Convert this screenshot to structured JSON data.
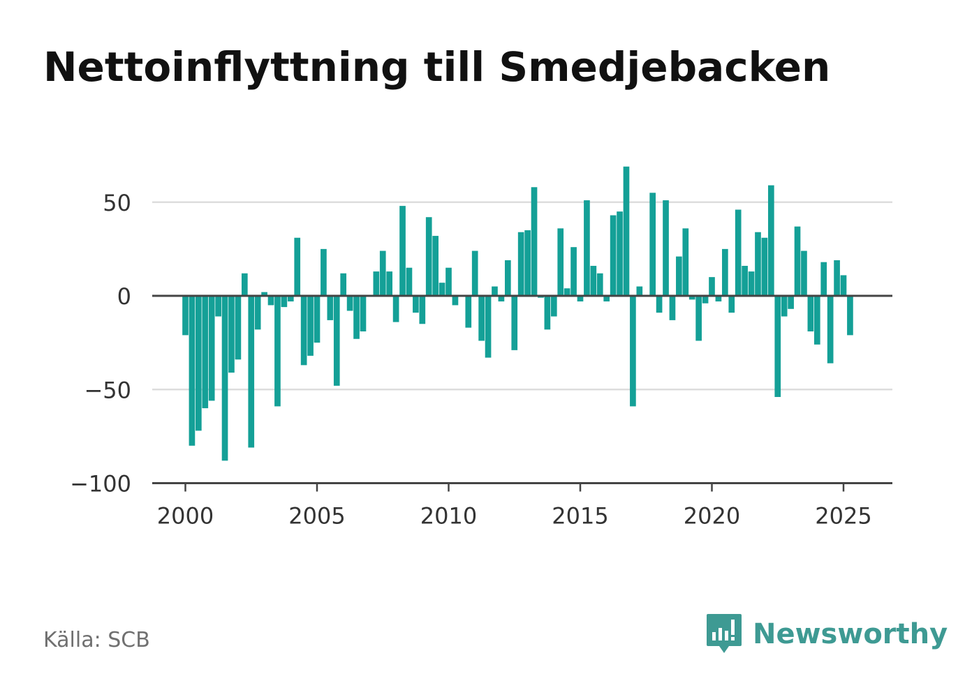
{
  "header": {
    "title": "Nettoinflyttning till Smedjebacken"
  },
  "footer": {
    "source": "Källa: SCB",
    "brand": "Newsworthy"
  },
  "colors": {
    "bar": "#14a097",
    "brand": "#3e9a93",
    "grid": "#dddddd",
    "axis": "#444444"
  },
  "chart_data": {
    "type": "bar",
    "title": "Nettoinflyttning till Smedjebacken",
    "xlabel": "",
    "ylabel": "",
    "xlim": [
      1997.5,
      2026.75
    ],
    "ylim": [
      -100,
      70
    ],
    "y_ticks": [
      50,
      0,
      -50,
      -100
    ],
    "y_tick_labels": [
      "50",
      "0",
      "−50",
      "−100"
    ],
    "x_ticks": [
      2000,
      2005,
      2010,
      2015,
      2020,
      2025
    ],
    "x_tick_labels": [
      "2000",
      "2005",
      "2010",
      "2015",
      "2020",
      "2025"
    ],
    "grid": true,
    "bar_interval": "quarter",
    "x": [
      2000.0,
      2000.25,
      2000.5,
      2000.75,
      2001.0,
      2001.25,
      2001.5,
      2001.75,
      2002.0,
      2002.25,
      2002.5,
      2002.75,
      2003.0,
      2003.25,
      2003.5,
      2003.75,
      2004.0,
      2004.25,
      2004.5,
      2004.75,
      2005.0,
      2005.25,
      2005.5,
      2005.75,
      2006.0,
      2006.25,
      2006.5,
      2006.75,
      2007.0,
      2007.25,
      2007.5,
      2007.75,
      2008.0,
      2008.25,
      2008.5,
      2008.75,
      2009.0,
      2009.25,
      2009.5,
      2009.75,
      2010.0,
      2010.25,
      2010.5,
      2010.75,
      2011.0,
      2011.25,
      2011.5,
      2011.75,
      2012.0,
      2012.25,
      2012.5,
      2012.75,
      2013.0,
      2013.25,
      2013.5,
      2013.75,
      2014.0,
      2014.25,
      2014.5,
      2014.75,
      2015.0,
      2015.25,
      2015.5,
      2015.75,
      2016.0,
      2016.25,
      2016.5,
      2016.75,
      2017.0,
      2017.25,
      2017.5,
      2017.75,
      2018.0,
      2018.25,
      2018.5,
      2018.75,
      2019.0,
      2019.25,
      2019.5,
      2019.75,
      2020.0,
      2020.25,
      2020.5,
      2020.75,
      2021.0,
      2021.25,
      2021.5,
      2021.75,
      2022.0,
      2022.25,
      2022.5,
      2022.75,
      2023.0,
      2023.25,
      2023.5,
      2023.75,
      2024.0,
      2024.25,
      2024.5,
      2024.75,
      2025.0,
      2025.25
    ],
    "values": [
      -21,
      -80,
      -72,
      -60,
      -56,
      -11,
      -88,
      -41,
      -34,
      12,
      -81,
      -18,
      2,
      -5,
      -59,
      -6,
      -3,
      31,
      -37,
      -32,
      -25,
      25,
      -13,
      -48,
      12,
      -8,
      -23,
      -19,
      0,
      13,
      24,
      13,
      -14,
      48,
      15,
      -9,
      -15,
      42,
      32,
      7,
      15,
      -5,
      0,
      -17,
      24,
      -24,
      -33,
      5,
      -3,
      19,
      -29,
      34,
      35,
      58,
      -1,
      -18,
      -11,
      36,
      4,
      26,
      -3,
      51,
      16,
      12,
      -3,
      43,
      45,
      69,
      -59,
      5,
      0,
      55,
      -9,
      51,
      -13,
      21,
      36,
      -2,
      -24,
      -4,
      10,
      -3,
      25,
      -9,
      46,
      16,
      13,
      34,
      31,
      59,
      -54,
      -11,
      -7,
      37,
      24,
      -19,
      -26,
      18,
      -36,
      19,
      11,
      -21
    ]
  }
}
